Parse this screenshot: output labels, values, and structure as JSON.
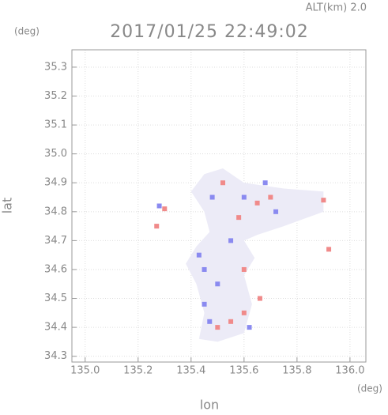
{
  "chart_data": {
    "type": "scatter",
    "title": "2017/01/25 22:49:02",
    "subtitle": "ALT(km) 2.0",
    "x_label": "lon",
    "y_label": "lat",
    "x_unit": "(deg)",
    "y_unit": "(deg)",
    "xlim": [
      134.95,
      136.06
    ],
    "ylim": [
      34.28,
      35.36
    ],
    "xticks": [
      {
        "value": 135,
        "label": "135.0"
      },
      135.2,
      135.4,
      135.6,
      135.8,
      {
        "value": 136,
        "label": "136.0"
      }
    ],
    "yticks": [
      35.3,
      35.2,
      35.1,
      {
        "value": 35,
        "label": "35.0"
      },
      34.9,
      34.8,
      34.7,
      34.6,
      34.5,
      34.4,
      34.3
    ],
    "grid": true,
    "echo_area": {
      "color": "#ecebf7",
      "x": [
        135.45,
        135.52,
        135.6,
        135.75,
        135.9,
        135.9,
        135.75,
        135.65,
        135.6,
        135.64,
        135.6,
        135.63,
        135.6,
        135.5,
        135.43,
        135.45,
        135.42,
        135.38,
        135.42,
        135.47,
        135.45,
        135.4
      ],
      "y": [
        34.93,
        34.95,
        34.9,
        34.88,
        34.87,
        34.8,
        34.75,
        34.72,
        34.7,
        34.64,
        34.58,
        34.48,
        34.38,
        34.35,
        34.36,
        34.45,
        34.55,
        34.62,
        34.68,
        34.73,
        34.8,
        34.87
      ]
    },
    "series": [
      {
        "color": "#f08a8a",
        "x": [
          135.9,
          135.6,
          135.55,
          135.5,
          135.65,
          135.7,
          135.58,
          135.3,
          135.27,
          135.92,
          135.6,
          135.52,
          135.66
        ],
        "y": [
          34.84,
          34.45,
          34.42,
          34.4,
          34.83,
          34.85,
          34.78,
          34.81,
          34.75,
          34.67,
          34.6,
          34.9,
          34.5
        ]
      },
      {
        "color": "#8a8af0",
        "x": [
          135.47,
          135.45,
          135.45,
          135.6,
          135.72,
          135.55,
          135.48,
          135.28,
          135.62,
          135.43,
          135.68,
          135.5
        ],
        "y": [
          34.42,
          34.48,
          34.6,
          34.85,
          34.8,
          34.7,
          34.85,
          34.82,
          34.4,
          34.65,
          34.9,
          34.55
        ]
      }
    ]
  }
}
